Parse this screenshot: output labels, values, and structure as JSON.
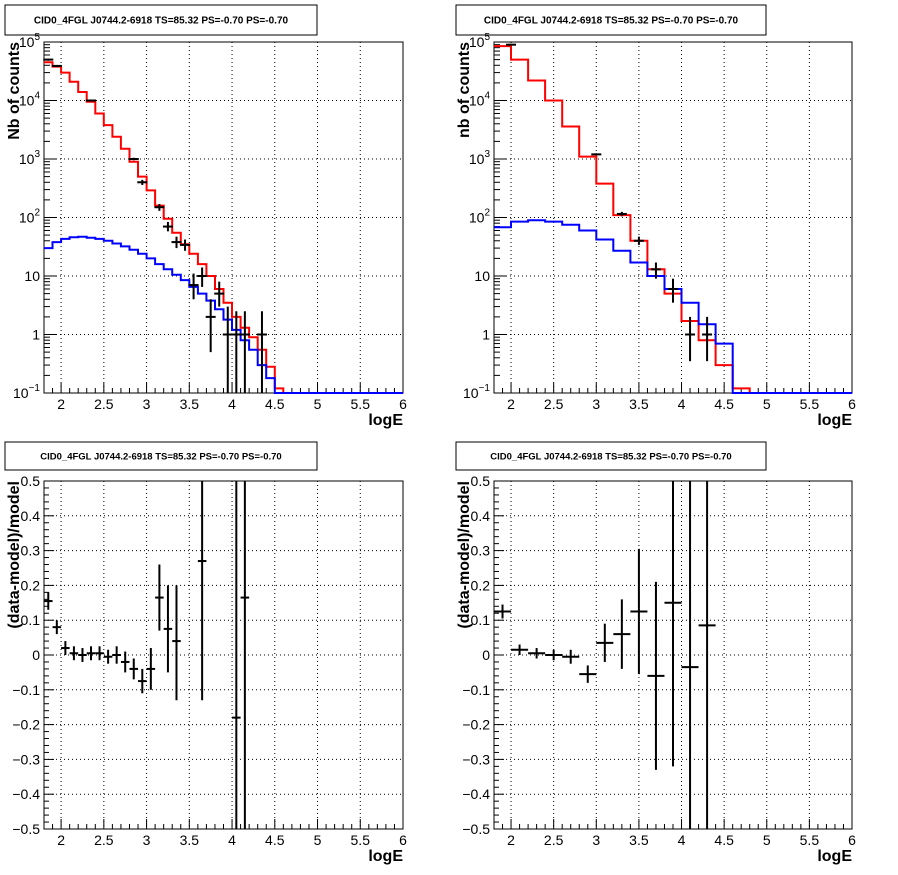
{
  "chart_data": [
    {
      "id": "counts-all",
      "type": "line",
      "title": "CID0_4FGL J0744.2-6918 TS=85.32 PS=-0.70 PS=-0.70",
      "xlabel": "logE",
      "ylabel": "Nb of counts",
      "xlim": [
        1.8,
        6.0
      ],
      "ylim": [
        0.1,
        100000
      ],
      "yscale": "log",
      "grid": true,
      "x_ticks": [
        "2",
        "2.5",
        "3",
        "3.5",
        "4",
        "4.5",
        "5",
        "5.5",
        "6"
      ],
      "y_ticks": [
        {
          "value": 0.1,
          "base": "10",
          "exp": "−1"
        },
        {
          "value": 1,
          "label": "1"
        },
        {
          "value": 10,
          "label": "10"
        },
        {
          "value": 100,
          "base": "10",
          "exp": "2"
        },
        {
          "value": 1000,
          "base": "10",
          "exp": "3"
        },
        {
          "value": 10000,
          "base": "10",
          "exp": "4"
        },
        {
          "value": 100000,
          "base": "10",
          "exp": "5"
        }
      ],
      "series": [
        {
          "color": "#ff0000",
          "style": "step",
          "bin_edges": [
            1.8,
            1.9,
            2.0,
            2.1,
            2.2,
            2.3,
            2.4,
            2.5,
            2.6,
            2.7,
            2.8,
            2.9,
            3.0,
            3.1,
            3.2,
            3.3,
            3.4,
            3.5,
            3.6,
            3.7,
            3.8,
            3.9,
            4.0,
            4.1,
            4.2,
            4.3,
            4.4,
            4.5,
            4.6,
            4.7,
            4.8,
            4.9,
            5.0,
            5.1,
            5.2,
            5.3,
            5.4,
            5.5,
            5.6,
            5.7,
            5.8,
            5.9,
            6.0
          ],
          "values": [
            45000,
            38000,
            30000,
            21000,
            14000,
            9500,
            6000,
            3800,
            2400,
            1500,
            900,
            500,
            290,
            160,
            95,
            55,
            35,
            24,
            16,
            10,
            6,
            3.5,
            2,
            1.3,
            0.9,
            0.55,
            0.28,
            0.12,
            0.1,
            0.1,
            0.1,
            0.1,
            0.1,
            0.1,
            0.1,
            0.1,
            0.1,
            0.1,
            0.1,
            0.1,
            0.1,
            0.1
          ]
        },
        {
          "color": "#0000ff",
          "style": "step",
          "bin_edges": [
            1.8,
            1.9,
            2.0,
            2.1,
            2.2,
            2.3,
            2.4,
            2.5,
            2.6,
            2.7,
            2.8,
            2.9,
            3.0,
            3.1,
            3.2,
            3.3,
            3.4,
            3.5,
            3.6,
            3.7,
            3.8,
            3.9,
            4.0,
            4.1,
            4.2,
            4.3,
            4.4,
            4.5,
            4.6,
            4.7,
            4.8,
            4.9,
            5.0,
            5.1,
            5.2,
            5.3,
            5.4,
            5.5,
            5.6,
            5.7,
            5.8,
            5.9,
            6.0
          ],
          "values": [
            30,
            38,
            43,
            46,
            47,
            45,
            43,
            40,
            36,
            32,
            28,
            24,
            20,
            16,
            13,
            10.5,
            8.5,
            6.5,
            5,
            3.8,
            2.7,
            1.8,
            1.2,
            0.8,
            0.55,
            0.3,
            0.18,
            0.1,
            0.1,
            0.1,
            0.1,
            0.1,
            0.1,
            0.1,
            0.1,
            0.1,
            0.1,
            0.1,
            0.1,
            0.1,
            0.1,
            0.1
          ]
        },
        {
          "color": "#000000",
          "style": "points",
          "points": [
            {
              "x": 1.85,
              "y": 50000,
              "ylo": 48000,
              "yhi": 52000
            },
            {
              "x": 1.95,
              "y": 39000,
              "ylo": 37500,
              "yhi": 40500
            },
            {
              "x": 2.35,
              "y": 10000,
              "ylo": 9700,
              "yhi": 10300
            },
            {
              "x": 2.85,
              "y": 1000,
              "ylo": 950,
              "yhi": 1050
            },
            {
              "x": 2.95,
              "y": 400,
              "ylo": 360,
              "yhi": 440
            },
            {
              "x": 3.15,
              "y": 150,
              "ylo": 130,
              "yhi": 170
            },
            {
              "x": 3.25,
              "y": 70,
              "ylo": 58,
              "yhi": 84
            },
            {
              "x": 3.35,
              "y": 38,
              "ylo": 30,
              "yhi": 47
            },
            {
              "x": 3.45,
              "y": 34,
              "ylo": 27,
              "yhi": 42
            },
            {
              "x": 3.55,
              "y": 7,
              "ylo": 4,
              "yhi": 11
            },
            {
              "x": 3.65,
              "y": 10,
              "ylo": 6.5,
              "yhi": 14
            },
            {
              "x": 3.75,
              "y": 2,
              "ylo": 0.5,
              "yhi": 4
            },
            {
              "x": 3.85,
              "y": 5,
              "ylo": 3,
              "yhi": 8
            },
            {
              "x": 3.95,
              "y": 1,
              "ylo": 0.1,
              "yhi": 3
            },
            {
              "x": 4.05,
              "y": 1,
              "ylo": 0.1,
              "yhi": 2.5
            },
            {
              "x": 4.15,
              "y": 1,
              "ylo": 0.1,
              "yhi": 2.5
            },
            {
              "x": 4.35,
              "y": 1,
              "ylo": 0.1,
              "yhi": 2.5
            }
          ]
        }
      ]
    },
    {
      "id": "counts-rebinned",
      "type": "line",
      "title": "CID0_4FGL J0744.2-6918 TS=85.32 PS=-0.70 PS=-0.70",
      "xlabel": "logE",
      "ylabel": "nb of counts",
      "xlim": [
        1.8,
        6.0
      ],
      "ylim": [
        0.1,
        100000
      ],
      "yscale": "log",
      "grid": true,
      "x_ticks": [
        "2",
        "2.5",
        "3",
        "3.5",
        "4",
        "4.5",
        "5",
        "5.5",
        "6"
      ],
      "y_ticks": [
        {
          "value": 0.1,
          "base": "10",
          "exp": "−1"
        },
        {
          "value": 1,
          "label": "1"
        },
        {
          "value": 10,
          "label": "10"
        },
        {
          "value": 100,
          "base": "10",
          "exp": "2"
        },
        {
          "value": 1000,
          "base": "10",
          "exp": "3"
        },
        {
          "value": 10000,
          "base": "10",
          "exp": "4"
        },
        {
          "value": 100000,
          "base": "10",
          "exp": "5"
        }
      ],
      "series": [
        {
          "color": "#ff0000",
          "style": "step",
          "bin_edges": [
            1.8,
            2.0,
            2.2,
            2.4,
            2.6,
            2.8,
            3.0,
            3.2,
            3.4,
            3.6,
            3.8,
            4.0,
            4.2,
            4.4,
            4.6,
            4.8,
            5.0,
            5.2,
            5.4,
            5.6,
            5.8,
            6.0
          ],
          "values": [
            85000,
            50000,
            22000,
            10000,
            3600,
            1100,
            380,
            110,
            40,
            13,
            5,
            1.7,
            0.8,
            0.3,
            0.12,
            0.1,
            0.1,
            0.1,
            0.1,
            0.1,
            0.1
          ]
        },
        {
          "color": "#0000ff",
          "style": "step",
          "bin_edges": [
            1.8,
            2.0,
            2.2,
            2.4,
            2.6,
            2.8,
            3.0,
            3.2,
            3.4,
            3.6,
            3.8,
            4.0,
            4.2,
            4.4,
            4.6,
            4.8,
            5.0,
            5.2,
            5.4,
            5.6,
            5.8,
            6.0
          ],
          "values": [
            68,
            85,
            90,
            85,
            75,
            60,
            42,
            27,
            17,
            10,
            6,
            3.5,
            1.5,
            0.7,
            0.1,
            0.1,
            0.1,
            0.1,
            0.1,
            0.1,
            0.1
          ]
        },
        {
          "color": "#000000",
          "style": "points",
          "points": [
            {
              "x": 2.0,
              "y": 90000,
              "ylo": 88000,
              "yhi": 92000
            },
            {
              "x": 3.0,
              "y": 1200,
              "ylo": 1150,
              "yhi": 1250
            },
            {
              "x": 3.3,
              "y": 115,
              "ylo": 105,
              "yhi": 125
            },
            {
              "x": 3.5,
              "y": 40,
              "ylo": 34,
              "yhi": 47
            },
            {
              "x": 3.7,
              "y": 13,
              "ylo": 9,
              "yhi": 17
            },
            {
              "x": 3.9,
              "y": 6,
              "ylo": 3.5,
              "yhi": 9
            },
            {
              "x": 4.1,
              "y": 1,
              "ylo": 0.35,
              "yhi": 2
            },
            {
              "x": 4.3,
              "y": 1,
              "ylo": 0.35,
              "yhi": 2
            }
          ]
        }
      ]
    },
    {
      "id": "residuals-all",
      "type": "scatter",
      "title": "CID0_4FGL J0744.2-6918 TS=85.32 PS=-0.70 PS=-0.70",
      "xlabel": "logE",
      "ylabel": "(data-model)/model",
      "xlim": [
        1.8,
        6.0
      ],
      "ylim": [
        -0.5,
        0.5
      ],
      "yscale": "linear",
      "grid": true,
      "x_ticks": [
        "2",
        "2.5",
        "3",
        "3.5",
        "4",
        "4.5",
        "5",
        "5.5",
        "6"
      ],
      "y_ticks": [
        "−0.5",
        "−0.4",
        "−0.3",
        "−0.2",
        "−0.1",
        "0",
        "0.1",
        "0.2",
        "0.3",
        "0.4",
        "0.5"
      ],
      "points": [
        {
          "x": 1.85,
          "y": 0.155,
          "ylo": 0.13,
          "yhi": 0.18,
          "xw": 0.05
        },
        {
          "x": 1.95,
          "y": 0.08,
          "ylo": 0.06,
          "yhi": 0.1,
          "xw": 0.05
        },
        {
          "x": 2.05,
          "y": 0.02,
          "ylo": 0.0,
          "yhi": 0.04,
          "xw": 0.05
        },
        {
          "x": 2.15,
          "y": 0.005,
          "ylo": -0.015,
          "yhi": 0.025,
          "xw": 0.05
        },
        {
          "x": 2.25,
          "y": 0.0,
          "ylo": -0.02,
          "yhi": 0.02,
          "xw": 0.05
        },
        {
          "x": 2.35,
          "y": 0.005,
          "ylo": -0.015,
          "yhi": 0.025,
          "xw": 0.05
        },
        {
          "x": 2.45,
          "y": 0.005,
          "ylo": -0.015,
          "yhi": 0.025,
          "xw": 0.05
        },
        {
          "x": 2.55,
          "y": -0.005,
          "ylo": -0.025,
          "yhi": 0.015,
          "xw": 0.05
        },
        {
          "x": 2.65,
          "y": 0.0,
          "ylo": -0.025,
          "yhi": 0.025,
          "xw": 0.05
        },
        {
          "x": 2.75,
          "y": -0.02,
          "ylo": -0.05,
          "yhi": 0.01,
          "xw": 0.05
        },
        {
          "x": 2.85,
          "y": -0.04,
          "ylo": -0.07,
          "yhi": -0.01,
          "xw": 0.05
        },
        {
          "x": 2.95,
          "y": -0.075,
          "ylo": -0.11,
          "yhi": -0.04,
          "xw": 0.05
        },
        {
          "x": 3.05,
          "y": -0.04,
          "ylo": -0.1,
          "yhi": 0.02,
          "xw": 0.05
        },
        {
          "x": 3.15,
          "y": 0.165,
          "ylo": 0.07,
          "yhi": 0.26,
          "xw": 0.05
        },
        {
          "x": 3.25,
          "y": 0.075,
          "ylo": -0.05,
          "yhi": 0.2,
          "xw": 0.05
        },
        {
          "x": 3.35,
          "y": 0.04,
          "ylo": -0.13,
          "yhi": 0.2,
          "xw": 0.05
        },
        {
          "x": 3.65,
          "y": 0.27,
          "ylo": -0.13,
          "yhi": 0.5,
          "xw": 0.05
        },
        {
          "x": 4.05,
          "y": -0.18,
          "ylo": -0.5,
          "yhi": 0.5,
          "xw": 0.05
        },
        {
          "x": 4.15,
          "y": 0.165,
          "ylo": -0.5,
          "yhi": 0.5,
          "xw": 0.05
        }
      ]
    },
    {
      "id": "residuals-rebinned",
      "type": "scatter",
      "title": "CID0_4FGL J0744.2-6918 TS=85.32 PS=-0.70 PS=-0.70",
      "xlabel": "logE",
      "ylabel": "(data-model)/model",
      "xlim": [
        1.8,
        6.0
      ],
      "ylim": [
        -0.5,
        0.5
      ],
      "yscale": "linear",
      "grid": true,
      "x_ticks": [
        "2",
        "2.5",
        "3",
        "3.5",
        "4",
        "4.5",
        "5",
        "5.5",
        "6"
      ],
      "y_ticks": [
        "−0.5",
        "−0.4",
        "−0.3",
        "−0.2",
        "−0.1",
        "0",
        "0.1",
        "0.2",
        "0.3",
        "0.4",
        "0.5"
      ],
      "points": [
        {
          "x": 1.9,
          "y": 0.125,
          "ylo": 0.105,
          "yhi": 0.145,
          "xw": 0.1
        },
        {
          "x": 2.1,
          "y": 0.015,
          "ylo": 0.0,
          "yhi": 0.03,
          "xw": 0.1
        },
        {
          "x": 2.3,
          "y": 0.005,
          "ylo": -0.01,
          "yhi": 0.02,
          "xw": 0.1
        },
        {
          "x": 2.5,
          "y": 0.0,
          "ylo": -0.015,
          "yhi": 0.015,
          "xw": 0.1
        },
        {
          "x": 2.7,
          "y": -0.005,
          "ylo": -0.025,
          "yhi": 0.015,
          "xw": 0.1
        },
        {
          "x": 2.9,
          "y": -0.055,
          "ylo": -0.08,
          "yhi": -0.03,
          "xw": 0.1
        },
        {
          "x": 3.1,
          "y": 0.035,
          "ylo": -0.02,
          "yhi": 0.09,
          "xw": 0.1
        },
        {
          "x": 3.3,
          "y": 0.06,
          "ylo": -0.04,
          "yhi": 0.16,
          "xw": 0.1
        },
        {
          "x": 3.5,
          "y": 0.125,
          "ylo": -0.055,
          "yhi": 0.305,
          "xw": 0.1
        },
        {
          "x": 3.7,
          "y": -0.06,
          "ylo": -0.33,
          "yhi": 0.21,
          "xw": 0.1
        },
        {
          "x": 3.9,
          "y": 0.15,
          "ylo": -0.32,
          "yhi": 0.5,
          "xw": 0.1
        },
        {
          "x": 4.1,
          "y": -0.035,
          "ylo": -0.5,
          "yhi": 0.5,
          "xw": 0.1
        },
        {
          "x": 4.3,
          "y": 0.085,
          "ylo": -0.5,
          "yhi": 0.5,
          "xw": 0.1
        }
      ]
    }
  ]
}
